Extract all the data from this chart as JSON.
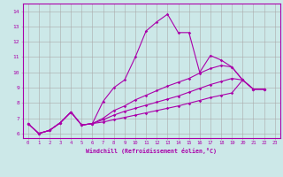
{
  "xlabel": "Windchill (Refroidissement éolien,°C)",
  "bg_color": "#cce8e8",
  "line_color": "#aa00aa",
  "grid_color": "#aaaaaa",
  "xlim": [
    -0.5,
    23.5
  ],
  "ylim": [
    5.7,
    14.5
  ],
  "xticks": [
    0,
    1,
    2,
    3,
    4,
    5,
    6,
    7,
    8,
    9,
    10,
    11,
    12,
    13,
    14,
    15,
    16,
    17,
    18,
    19,
    20,
    21,
    22,
    23
  ],
  "yticks": [
    6,
    7,
    8,
    9,
    10,
    11,
    12,
    13,
    14
  ],
  "series": [
    {
      "x": [
        0,
        1,
        2,
        3,
        4,
        5,
        6,
        7,
        8,
        9,
        10,
        11,
        12,
        13,
        14,
        15,
        16,
        17,
        18,
        19,
        20,
        21,
        22
      ],
      "y": [
        6.65,
        6.0,
        6.2,
        6.7,
        7.4,
        6.55,
        6.65,
        8.1,
        9.0,
        9.5,
        11.0,
        12.7,
        13.3,
        13.8,
        12.6,
        12.6,
        10.0,
        11.1,
        10.8,
        10.35,
        9.5,
        8.9,
        8.9
      ]
    },
    {
      "x": [
        0,
        1,
        2,
        3,
        4,
        5,
        6,
        7,
        8,
        9,
        10,
        11,
        12,
        13,
        14,
        15,
        16,
        17,
        18,
        19,
        20,
        21,
        22
      ],
      "y": [
        6.65,
        6.0,
        6.2,
        6.7,
        7.4,
        6.55,
        6.65,
        7.0,
        7.5,
        7.8,
        8.2,
        8.5,
        8.8,
        9.1,
        9.35,
        9.6,
        9.95,
        10.25,
        10.45,
        10.35,
        9.5,
        8.9,
        8.9
      ]
    },
    {
      "x": [
        0,
        1,
        2,
        3,
        4,
        5,
        6,
        7,
        8,
        9,
        10,
        11,
        12,
        13,
        14,
        15,
        16,
        17,
        18,
        19,
        20,
        21,
        22
      ],
      "y": [
        6.65,
        6.0,
        6.2,
        6.7,
        7.4,
        6.55,
        6.65,
        6.9,
        7.2,
        7.45,
        7.65,
        7.85,
        8.05,
        8.25,
        8.45,
        8.7,
        8.95,
        9.2,
        9.4,
        9.6,
        9.5,
        8.9,
        8.9
      ]
    },
    {
      "x": [
        0,
        1,
        2,
        3,
        4,
        5,
        6,
        7,
        8,
        9,
        10,
        11,
        12,
        13,
        14,
        15,
        16,
        17,
        18,
        19,
        20,
        21,
        22
      ],
      "y": [
        6.65,
        6.0,
        6.2,
        6.7,
        7.4,
        6.55,
        6.65,
        6.75,
        6.9,
        7.05,
        7.2,
        7.35,
        7.5,
        7.65,
        7.8,
        7.98,
        8.16,
        8.35,
        8.5,
        8.65,
        9.5,
        8.9,
        8.9
      ]
    }
  ]
}
